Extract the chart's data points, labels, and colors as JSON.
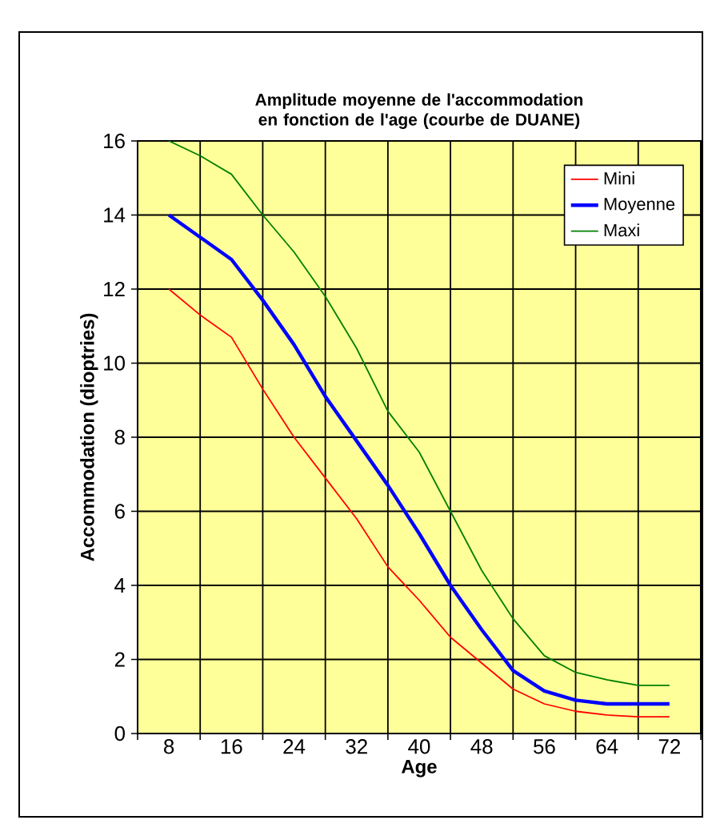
{
  "chart_data": {
    "type": "line",
    "title": "Amplitude moyenne de l'accommodation en fonction de l'age (courbe de DUANE)",
    "xlabel": "Age",
    "ylabel": "Accommodation (dioptries)",
    "x": [
      8,
      12,
      16,
      20,
      24,
      28,
      32,
      36,
      40,
      44,
      48,
      52,
      56,
      60,
      64,
      68,
      72
    ],
    "series": [
      {
        "name": "Mini",
        "color": "#ff0000",
        "values": [
          12,
          11.3,
          10.7,
          9.3,
          8.0,
          6.9,
          5.8,
          4.5,
          3.6,
          2.6,
          1.9,
          1.2,
          0.8,
          0.6,
          0.5,
          0.45,
          0.45
        ]
      },
      {
        "name": "Moyenne",
        "color": "#0000ff",
        "values": [
          14,
          13.4,
          12.8,
          11.7,
          10.5,
          9.1,
          7.9,
          6.7,
          5.4,
          4.0,
          2.8,
          1.7,
          1.15,
          0.9,
          0.8,
          0.8,
          0.8
        ]
      },
      {
        "name": "Maxi",
        "color": "#008000",
        "values": [
          16,
          15.6,
          15.1,
          14.0,
          13.0,
          11.8,
          10.4,
          8.7,
          7.6,
          6.0,
          4.4,
          3.1,
          2.1,
          1.65,
          1.45,
          1.3,
          1.3
        ]
      }
    ],
    "xlim": [
      4,
      76
    ],
    "xticks": [
      {
        "value": 4,
        "label": null
      },
      8,
      {
        "value": 12,
        "label": null
      },
      16,
      {
        "value": 20,
        "label": null
      },
      24,
      {
        "value": 28,
        "label": null
      },
      32,
      {
        "value": 36,
        "label": null
      },
      40,
      {
        "value": 44,
        "label": null
      },
      48,
      {
        "value": 52,
        "label": null
      },
      56,
      {
        "value": 60,
        "label": null
      },
      64,
      {
        "value": 68,
        "label": null
      },
      72,
      {
        "value": 76,
        "label": null
      }
    ],
    "ylim": [
      0,
      16
    ],
    "yticks": [
      0,
      2,
      4,
      6,
      8,
      10,
      12,
      14,
      16
    ],
    "grid": true,
    "legend": "top right",
    "marker": "none",
    "line_style": "solid"
  }
}
